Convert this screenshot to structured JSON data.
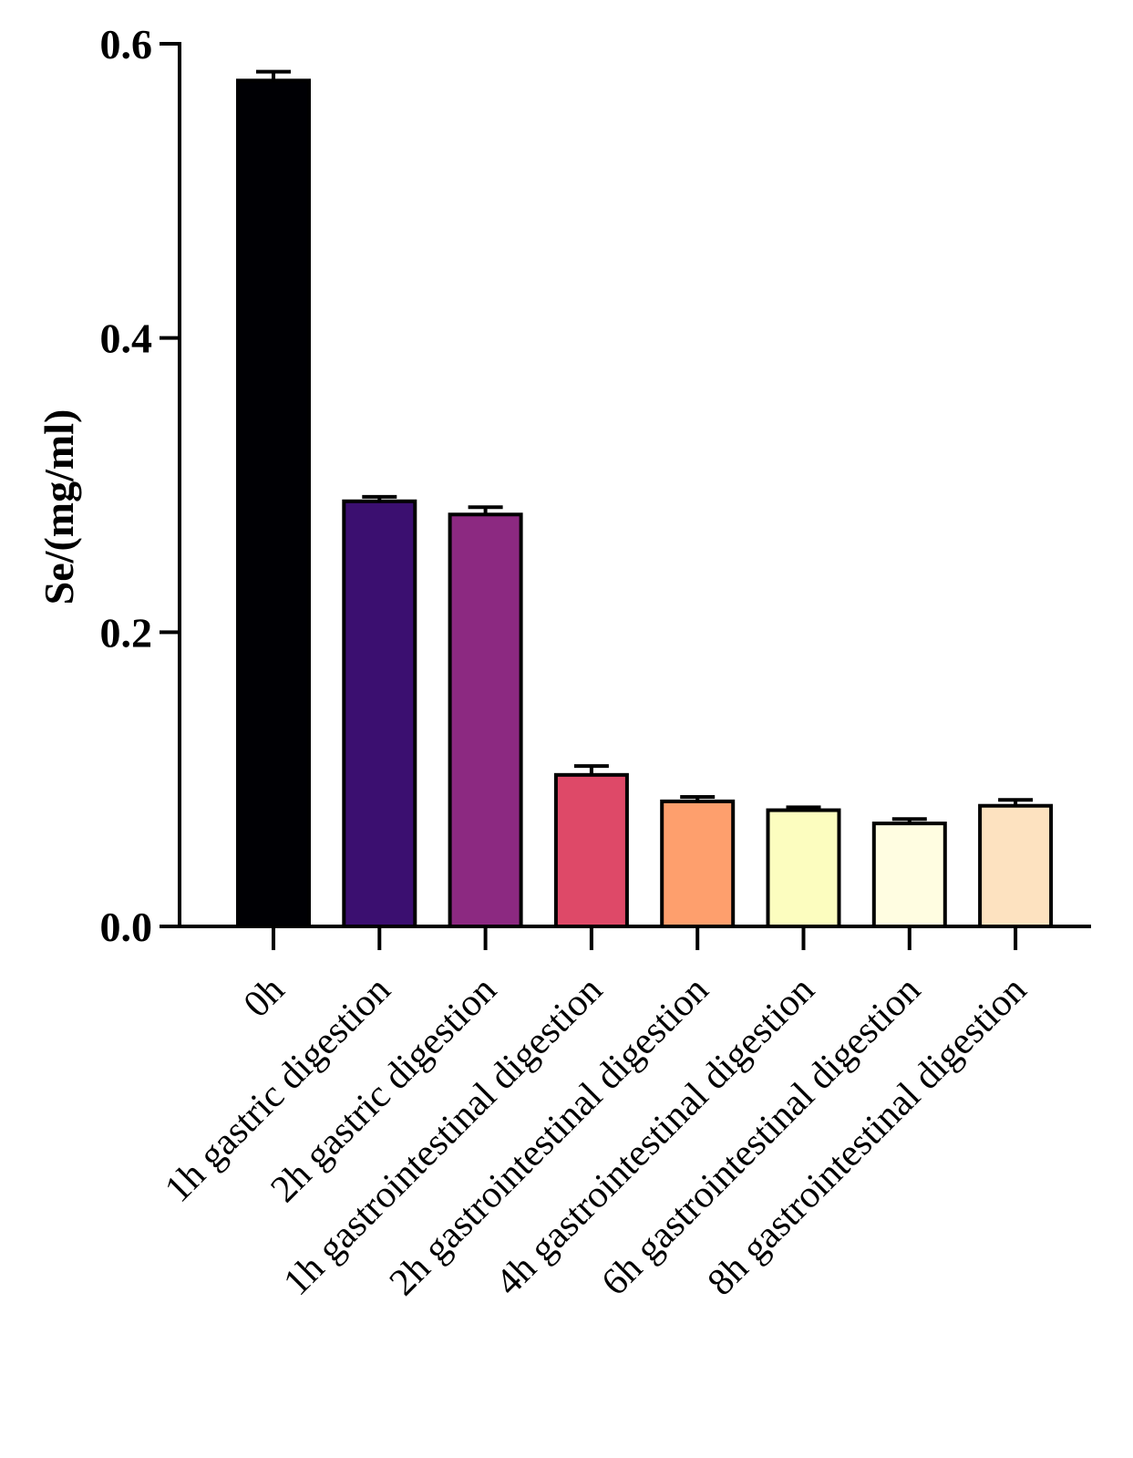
{
  "chart_data": {
    "type": "bar",
    "title": "",
    "xlabel": "",
    "ylabel": "Se/(mg/ml)",
    "ylim": [
      0,
      0.6
    ],
    "yticks": [
      {
        "value": 0.0,
        "label": "0.0"
      },
      {
        "value": 0.2,
        "label": "0.2"
      },
      {
        "value": 0.4,
        "label": "0.4"
      },
      {
        "value": 0.6,
        "label": "0.6"
      }
    ],
    "categories": [
      "0h",
      "1h gastric digestion",
      "2h gastric digestion",
      "1h gastrointestinal digestion",
      "2h gastrointestinal digestion",
      "4h gastrointestinal digestion",
      "6h gastrointestinal digestion",
      "8h gastrointestinal digestion"
    ],
    "values": [
      0.575,
      0.289,
      0.28,
      0.103,
      0.085,
      0.079,
      0.07,
      0.082
    ],
    "errors": [
      0.006,
      0.003,
      0.005,
      0.006,
      0.003,
      0.002,
      0.003,
      0.004
    ],
    "colors": [
      "#000004",
      "#3b0f70",
      "#8c2981",
      "#de4968",
      "#fe9f6d",
      "#fcfdbf",
      "#fffde1",
      "#fde2c0"
    ],
    "grid": false,
    "legend": "none"
  }
}
